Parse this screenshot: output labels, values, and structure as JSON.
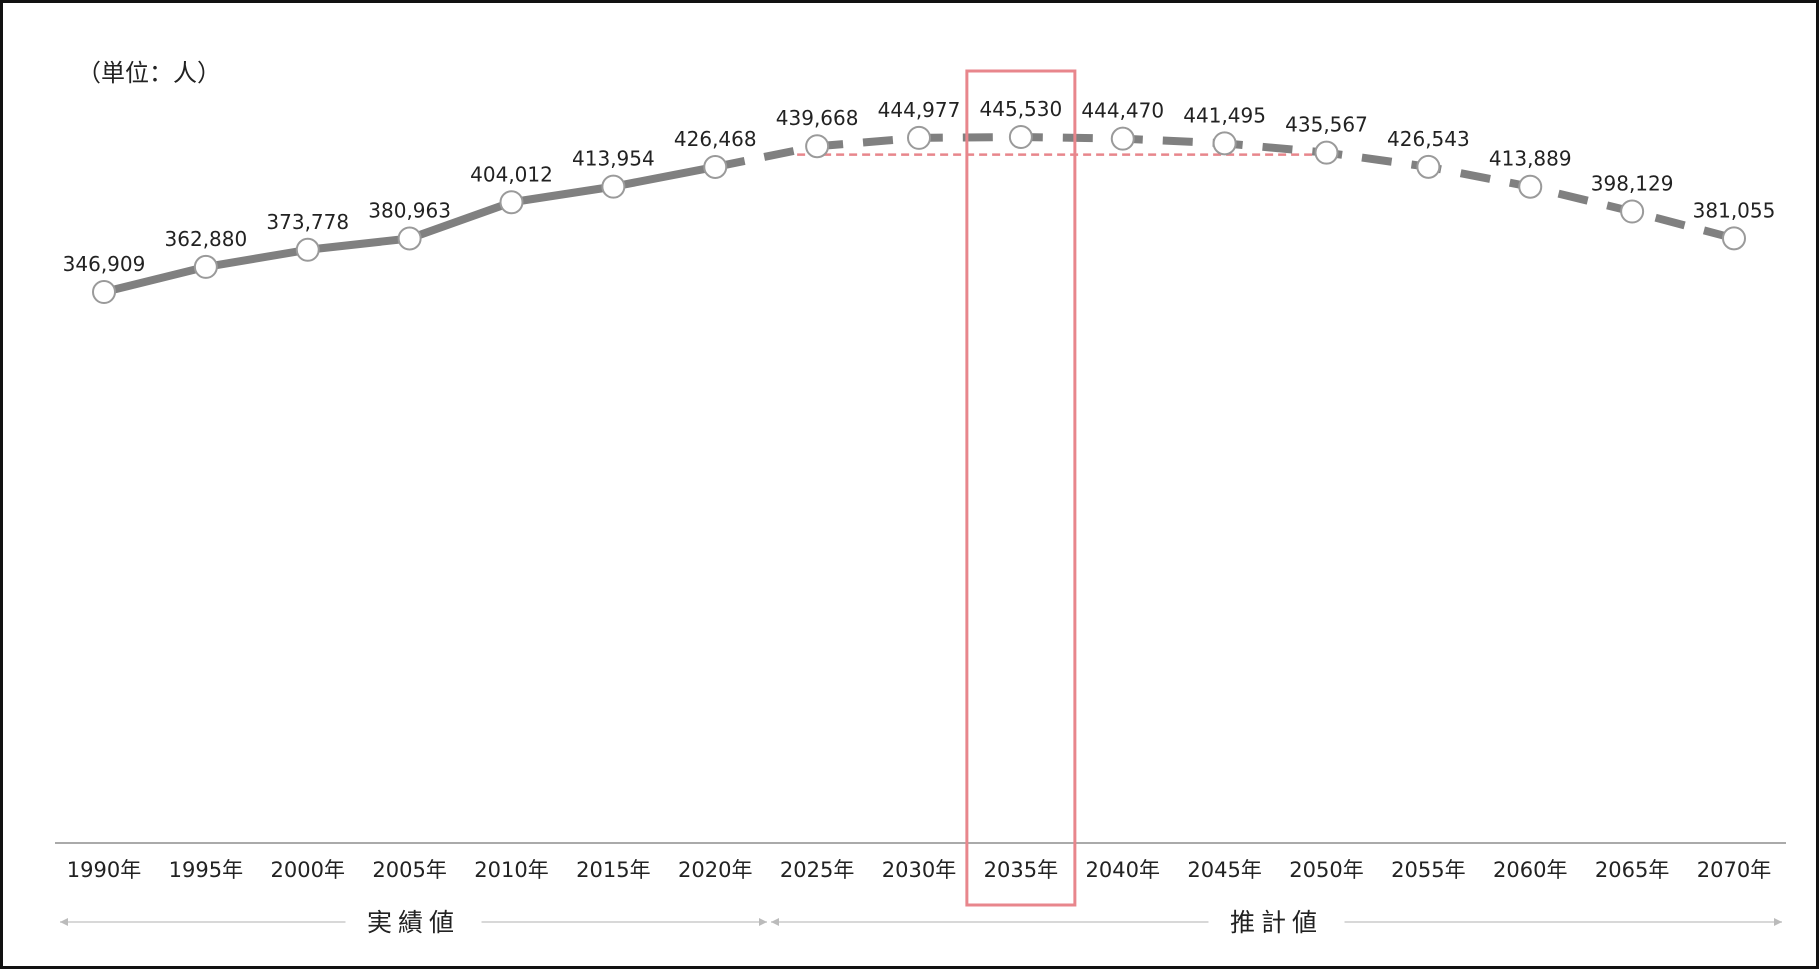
{
  "chart_data": {
    "type": "line",
    "unit_label": "（単位：人）",
    "categories": [
      "1990年",
      "1995年",
      "2000年",
      "2005年",
      "2010年",
      "2015年",
      "2020年",
      "2025年",
      "2030年",
      "2035年",
      "2040年",
      "2045年",
      "2050年",
      "2055年",
      "2060年",
      "2065年",
      "2070年"
    ],
    "values": [
      346909,
      362880,
      373778,
      380963,
      404012,
      413954,
      426468,
      439668,
      444977,
      445530,
      444470,
      441495,
      435567,
      426543,
      413889,
      398129,
      381055
    ],
    "value_labels": [
      "346,909",
      "362,880",
      "373,778",
      "380,963",
      "404,012",
      "413,954",
      "426,468",
      "439,668",
      "444,977",
      "445,530",
      "444,470",
      "441,495",
      "435,567",
      "426,543",
      "413,889",
      "398,129",
      "381,055"
    ],
    "series": [
      {
        "style": "solid",
        "from": "1990年",
        "to": "2020年"
      },
      {
        "style": "dashed",
        "from": "2020年",
        "to": "2070年"
      }
    ],
    "periods": [
      {
        "label": "実績値",
        "from": "1990年",
        "to": "2020年"
      },
      {
        "label": "推計値",
        "from": "2025年",
        "to": "2070年"
      }
    ],
    "highlight_category": "2035年",
    "reference_line": {
      "value": 435567,
      "from": "2025年",
      "to": "2050年",
      "color": "#e8868c"
    },
    "ylim": [
      0,
      460000
    ],
    "grid": false,
    "colors": {
      "line": "#808080",
      "marker_fill": "#ffffff",
      "highlight": "#e8868c",
      "axis": "#aaaaaa"
    }
  }
}
